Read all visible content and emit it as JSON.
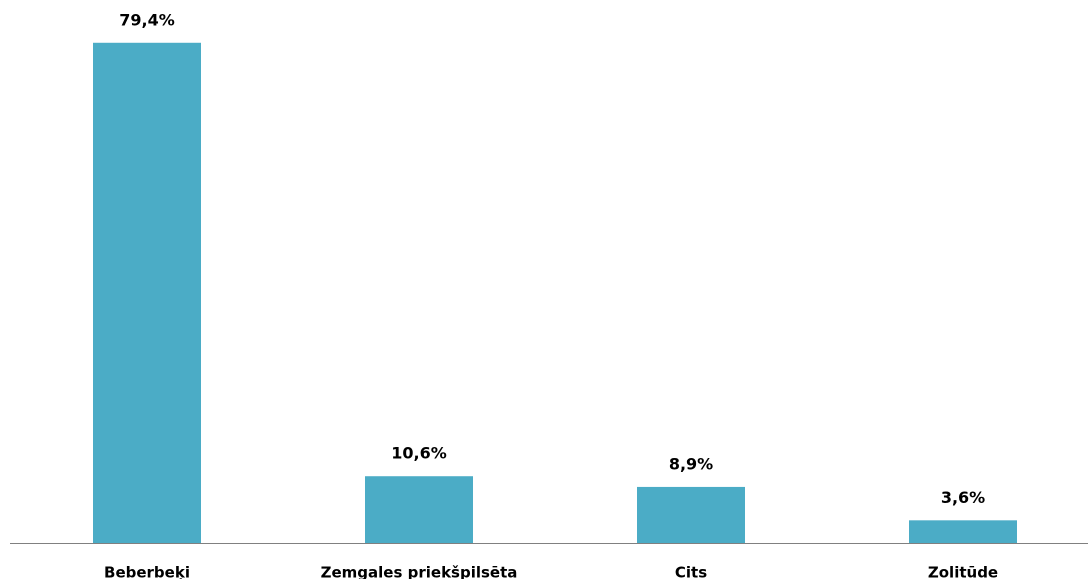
{
  "chart_data": {
    "type": "bar",
    "categories": [
      "Beberbeķi",
      "Zemgales priekšpilsēta",
      "Cits",
      "Zolitūde"
    ],
    "values": [
      79.4,
      10.6,
      8.9,
      3.6
    ],
    "value_labels": [
      "79,4%",
      "10,6%",
      "8,9%",
      "3,6%"
    ],
    "color": "#4bacc6"
  }
}
